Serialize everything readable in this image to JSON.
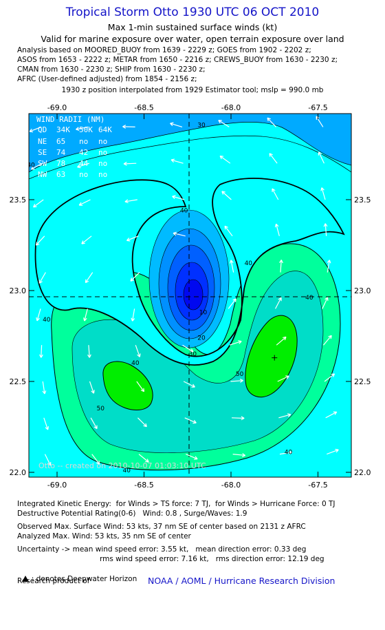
{
  "header": {
    "title": "Tropical Storm Otto 1930 UTC 06 OCT 2010",
    "subtitle_1": "Max 1-min sustained surface winds (kt)",
    "subtitle_2": "Valid for marine exposure over water, open terrain exposure over land"
  },
  "analysis": {
    "lines": [
      "Analysis based on MOORED_BUOY from 1639 - 2229 z; GOES from 1902 - 2202 z;",
      "ASOS from 1653 - 2222 z; METAR from 1650 - 2216 z; CREWS_BUOY from 1630 - 2230 z;",
      "CMAN from 1630 - 2230 z; SHIP from 1630 - 2230 z;",
      "AFRC (User-defined adjusted) from 1854 - 2156 z;"
    ],
    "interpolation": "1930 z position interpolated from 1929 Estimator tool; mslp = 990.0 mb"
  },
  "map": {
    "x_ticks": [
      "-69.0",
      "-68.5",
      "-68.0",
      "-67.5"
    ],
    "x_values": [
      -69.0,
      -68.5,
      -68.0,
      -67.5
    ],
    "y_ticks": [
      "23.5",
      "23.0",
      "22.5",
      "22.0"
    ],
    "y_values": [
      23.5,
      23.0,
      22.5,
      22.0
    ],
    "lon_range": [
      -69.2,
      -67.2
    ],
    "lat_range": [
      21.98,
      24.0
    ],
    "center": {
      "lon": -68.22,
      "lat": 22.96
    },
    "max_wind_marker": {
      "lon": -67.75,
      "lat": 22.63
    },
    "contour_labels": [
      {
        "text": "30",
        "lon": -68.17,
        "lat": 23.9
      },
      {
        "text": "40",
        "lon": -69.15,
        "lat": 23.68
      },
      {
        "text": "40",
        "lon": -68.27,
        "lat": 23.43
      },
      {
        "text": "40",
        "lon": -67.9,
        "lat": 23.14
      },
      {
        "text": "40",
        "lon": -67.55,
        "lat": 22.95
      },
      {
        "text": "40",
        "lon": -69.06,
        "lat": 22.83
      },
      {
        "text": "40",
        "lon": -68.55,
        "lat": 22.59
      },
      {
        "text": "40",
        "lon": -67.67,
        "lat": 22.1
      },
      {
        "text": "40",
        "lon": -68.6,
        "lat": 22.0
      },
      {
        "text": "50",
        "lon": -68.75,
        "lat": 22.34
      },
      {
        "text": "50",
        "lon": -67.95,
        "lat": 22.53
      },
      {
        "text": "20",
        "lon": -68.17,
        "lat": 22.73
      },
      {
        "text": "10",
        "lon": -68.16,
        "lat": 22.87
      },
      {
        "text": "30",
        "lon": -68.22,
        "lat": 22.64
      }
    ],
    "wind_radii": {
      "title": "WIND RADII (NM)",
      "columns": [
        "QD",
        "34K",
        "50K",
        "64K"
      ],
      "rows": [
        [
          "NE",
          "65",
          "no",
          "no"
        ],
        [
          "SE",
          "74",
          "42",
          "no"
        ],
        [
          "SW",
          "78",
          "44",
          "no"
        ],
        [
          "NW",
          "63",
          "no",
          "no"
        ]
      ]
    },
    "credit": "Otto -- created on 2010-10-07 01:03:10 UTC",
    "colors": {
      "deep": "#00aaff",
      "cyan": "#00ffff",
      "teal": "#00ddc8",
      "lightgreen": "#00ff96",
      "green": "#00ee00",
      "core1": "#00bbff",
      "core2": "#0090ff",
      "core3": "#0060ff",
      "core4": "#0030ff",
      "core5": "#0008f0"
    }
  },
  "footer": {
    "ike": "Integrated Kinetic Energy:  for Winds > TS force: 7 TJ,  for Winds > Hurricane Force: 0 TJ",
    "dpr": "Destructive Potential Rating(0-6)   Wind: 0.8 , Surge/Waves: 1.9",
    "obs_max": "Observed Max. Surface Wind: 53 kts, 37 nm SE of center based on 2131 z AFRC",
    "analyzed_max": "Analyzed Max. Wind: 53 kts, 35 nm SE of center",
    "uncertainty_1": "Uncertainty -> mean wind speed error: 3.55 kt,   mean direction error: 0.33 deg",
    "uncertainty_2": "rms wind speed error: 7.16 kt,   rms direction error: 12.19 deg",
    "deepwater": ": denotes Deepwater Horizon",
    "research_label": "Research product of",
    "research_org": "NOAA / AOML / Hurricane Research Division"
  }
}
